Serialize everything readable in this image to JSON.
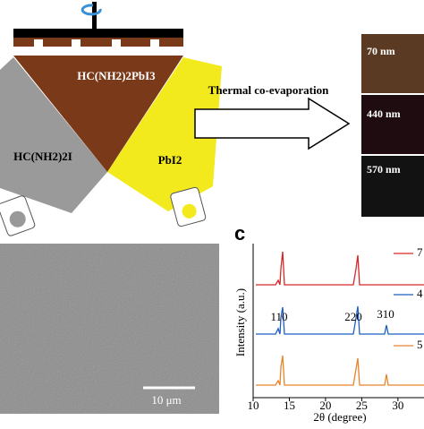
{
  "schematic": {
    "product": "HC(NH2)2PbI3",
    "source_left": "HC(NH2)2I",
    "source_right": "PbI2",
    "process": "Thermal co-evaporation"
  },
  "films": [
    "70 nm",
    "440 nm",
    "570 nm"
  ],
  "sem": {
    "scale_bar": "10 μm"
  },
  "xrd": {
    "panel": "c",
    "ylabel": "Intensity (a.u.)",
    "xlabel": "2θ (degree)",
    "xlim": [
      10,
      33.6
    ],
    "xticks": [
      10,
      15,
      20,
      25,
      30
    ],
    "peaks": [
      "110",
      "220",
      "310"
    ],
    "legend": [
      "7",
      "4",
      "5"
    ]
  }
}
